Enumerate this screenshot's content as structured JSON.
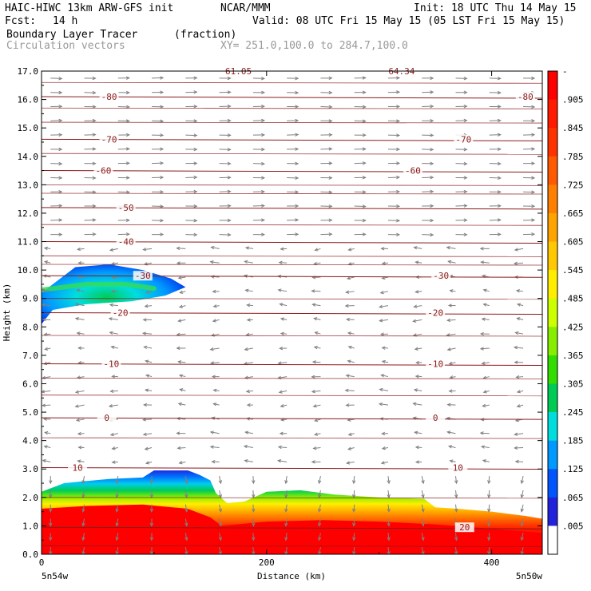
{
  "header": {
    "model": "HAIC-HIWC 13km ARW-GFS init",
    "org": "NCAR/MMM",
    "init": "Init: 18 UTC Thu 14 May 15",
    "fcst_label": "Fcst:",
    "fcst_value": "14 h",
    "valid": "Valid: 08 UTC Fri 15 May 15 (05 LST Fri 15 May 15)",
    "field": "Boundary Layer Tracer",
    "units": "(fraction)",
    "overlay": "Circulation vectors",
    "cross_section": "XY= 251.0,100.0 to 284.7,100.0"
  },
  "colors": {
    "contour": "#8b1a1a",
    "vector": "#808080",
    "frame": "#000000"
  },
  "chart_data": {
    "type": "heatmap",
    "title": "Boundary Layer Tracer",
    "xlabel": "Distance (km)",
    "ylabel": "Height (km)",
    "xlim": [
      0,
      445
    ],
    "ylim": [
      0,
      17
    ],
    "xticks": [
      0,
      200,
      400
    ],
    "yticks": [
      0.0,
      1.0,
      2.0,
      3.0,
      4.0,
      5.0,
      6.0,
      7.0,
      8.0,
      9.0,
      10.0,
      11.0,
      12.0,
      13.0,
      14.0,
      15.0,
      16.0,
      17.0
    ],
    "x_endpoints": {
      "left": "5n54w",
      "right": "5n50w"
    },
    "colorbar": {
      "labels": [
        "-",
        ".905",
        ".845",
        ".785",
        ".725",
        ".665",
        ".605",
        ".545",
        ".485",
        ".425",
        ".365",
        ".305",
        ".245",
        ".185",
        ".125",
        ".065",
        ".005"
      ],
      "colors": [
        "#ff0000",
        "#ff1a00",
        "#ff3300",
        "#ff5a00",
        "#ff7f00",
        "#ffa300",
        "#ffc800",
        "#ffee00",
        "#ccff00",
        "#88ee00",
        "#33dd00",
        "#00cc55",
        "#00dddd",
        "#0099ff",
        "#0055ff",
        "#2222dd",
        "#ffffff"
      ]
    },
    "temperature_contours": [
      {
        "label": "-80",
        "y": 16.1,
        "label_x": [
          60,
          430
        ]
      },
      {
        "label": "-70",
        "y": 14.6,
        "label_x": [
          60,
          375
        ]
      },
      {
        "label": "-60",
        "y": 13.5,
        "label_x": [
          55,
          330
        ]
      },
      {
        "label": "-50",
        "y": 12.2,
        "label_x": [
          75
        ]
      },
      {
        "label": "-40",
        "y": 11.0,
        "label_x": [
          75
        ]
      },
      {
        "label": "-30",
        "y": 9.8,
        "label_x": [
          90,
          355
        ]
      },
      {
        "label": "-20",
        "y": 8.5,
        "label_x": [
          70,
          350
        ]
      },
      {
        "label": "-10",
        "y": 6.7,
        "label_x": [
          62,
          350
        ]
      },
      {
        "label": "0",
        "y": 4.8,
        "label_x": [
          58,
          350
        ]
      },
      {
        "label": "10",
        "y": 3.05,
        "label_x": [
          32,
          370
        ]
      },
      {
        "label": "20",
        "y": 0.95,
        "label_x": [
          376
        ]
      }
    ],
    "top_labels": [
      {
        "label": "61.05",
        "x": 175
      },
      {
        "label": "64.34",
        "x": 320
      }
    ],
    "upper_plume": {
      "top": [
        [
          0,
          9.2
        ],
        [
          30,
          10.1
        ],
        [
          60,
          10.2
        ],
        [
          90,
          10.0
        ],
        [
          115,
          9.7
        ],
        [
          128,
          9.4
        ]
      ],
      "bottom": [
        [
          128,
          9.4
        ],
        [
          110,
          9.1
        ],
        [
          80,
          8.9
        ],
        [
          40,
          8.8
        ],
        [
          10,
          8.6
        ],
        [
          0,
          8.1
        ]
      ],
      "core": [
        [
          0,
          9.3
        ],
        [
          40,
          9.5
        ],
        [
          75,
          9.5
        ],
        [
          100,
          9.35
        ]
      ]
    },
    "boundary_layer": {
      "top_km": [
        [
          0,
          2.2
        ],
        [
          20,
          2.5
        ],
        [
          60,
          2.65
        ],
        [
          90,
          2.7
        ],
        [
          100,
          2.95
        ],
        [
          130,
          2.95
        ],
        [
          140,
          2.8
        ],
        [
          150,
          2.6
        ],
        [
          155,
          2.15
        ],
        [
          165,
          1.8
        ],
        [
          180,
          1.85
        ],
        [
          200,
          2.2
        ],
        [
          230,
          2.25
        ],
        [
          260,
          2.1
        ],
        [
          300,
          2.0
        ],
        [
          340,
          1.95
        ],
        [
          350,
          1.65
        ],
        [
          370,
          1.6
        ],
        [
          400,
          1.5
        ],
        [
          430,
          1.35
        ],
        [
          445,
          1.25
        ]
      ],
      "red_top_km": [
        [
          0,
          1.6
        ],
        [
          40,
          1.7
        ],
        [
          90,
          1.75
        ],
        [
          130,
          1.6
        ],
        [
          150,
          1.3
        ],
        [
          160,
          1.0
        ],
        [
          200,
          1.15
        ],
        [
          250,
          1.2
        ],
        [
          300,
          1.15
        ],
        [
          350,
          1.05
        ],
        [
          400,
          0.9
        ],
        [
          445,
          0.75
        ]
      ]
    }
  }
}
